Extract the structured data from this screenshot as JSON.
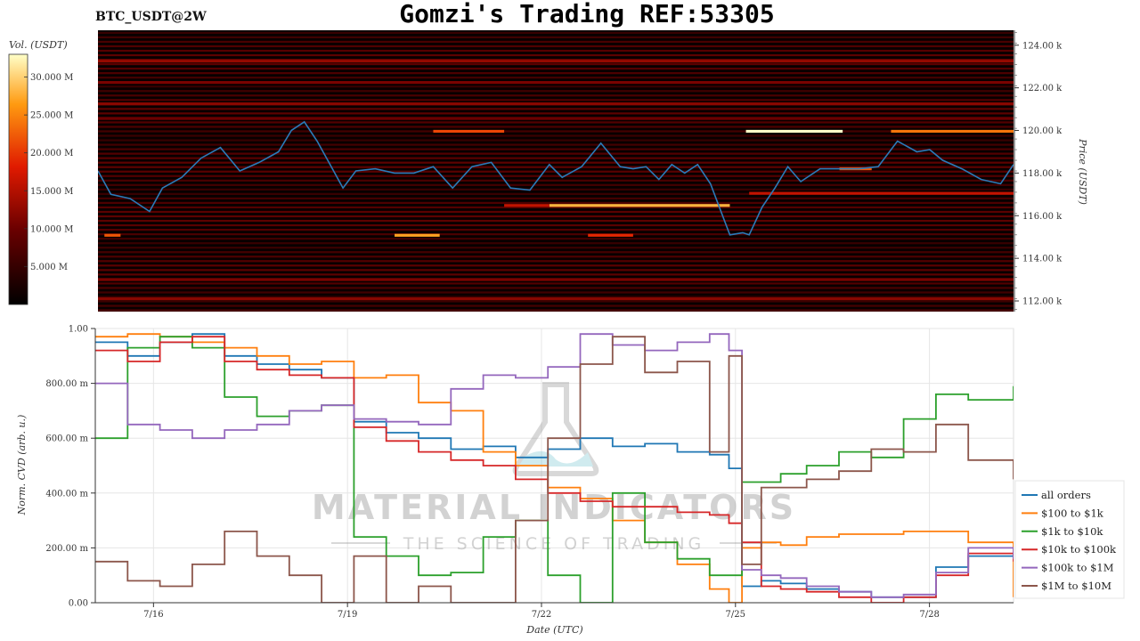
{
  "header": {
    "title": "Gomzi's Trading REF:53305",
    "pair": "BTC_USDT@2W"
  },
  "colorbar": {
    "label": "Vol. (USDT)",
    "ticks": [
      "5.000 M",
      "10.000 M",
      "15.000 M",
      "20.000 M",
      "25.000 M",
      "30.000 M"
    ],
    "max": 33000000
  },
  "watermark": {
    "brand": "MATERIAL INDICATORS",
    "tagline": "THE SCIENCE OF TRADING"
  },
  "chart_data": [
    {
      "type": "heatmap",
      "ylabel": "Price (USDT)",
      "ylim": [
        111500,
        124700
      ],
      "yticks": [
        "112.00 k",
        "114.00 k",
        "116.00 k",
        "118.00 k",
        "120.00 k",
        "122.00 k",
        "124.00 k"
      ],
      "xlim": [
        0,
        14.2
      ],
      "price_series": {
        "name": "price",
        "color": "#2b7bb9",
        "x": [
          0,
          0.2,
          0.5,
          0.8,
          1.0,
          1.3,
          1.6,
          1.9,
          2.2,
          2.5,
          2.8,
          3.0,
          3.2,
          3.4,
          3.6,
          3.8,
          4.0,
          4.3,
          4.6,
          4.9,
          5.2,
          5.5,
          5.8,
          6.1,
          6.4,
          6.7,
          7.0,
          7.2,
          7.5,
          7.8,
          8.1,
          8.3,
          8.5,
          8.7,
          8.9,
          9.1,
          9.3,
          9.5,
          9.8,
          10.0,
          10.1,
          10.3,
          10.5,
          10.7,
          10.9,
          11.2,
          11.5,
          11.8,
          12.1,
          12.4,
          12.7,
          12.9,
          13.1,
          13.4,
          13.7,
          14.0,
          14.2
        ],
        "y": [
          118100,
          117000,
          116800,
          116200,
          117300,
          117800,
          118700,
          119200,
          118100,
          118500,
          119000,
          120000,
          120400,
          119500,
          118400,
          117300,
          118100,
          118200,
          118000,
          118000,
          118300,
          117300,
          118300,
          118500,
          117300,
          117200,
          118400,
          117800,
          118300,
          119400,
          118300,
          118200,
          118300,
          117700,
          118400,
          118000,
          118400,
          117500,
          115100,
          115200,
          115100,
          116400,
          117300,
          118300,
          117600,
          118200,
          118200,
          118200,
          118300,
          119500,
          119000,
          119100,
          118600,
          118200,
          117700,
          117500,
          118400
        ]
      },
      "levels": [
        {
          "price": 119960,
          "x0": 10.05,
          "x1": 11.55,
          "volume": 33000000
        },
        {
          "price": 119960,
          "x0": 12.3,
          "x1": 14.2,
          "volume": 24000000
        },
        {
          "price": 119960,
          "x0": 5.2,
          "x1": 6.3,
          "volume": 21000000
        },
        {
          "price": 116480,
          "x0": 7.0,
          "x1": 9.8,
          "volume": 28000000
        },
        {
          "price": 116480,
          "x0": 6.3,
          "x1": 7.0,
          "volume": 16000000
        },
        {
          "price": 115080,
          "x0": 0.1,
          "x1": 0.35,
          "volume": 22000000
        },
        {
          "price": 115080,
          "x0": 4.6,
          "x1": 5.3,
          "volume": 27000000
        },
        {
          "price": 115080,
          "x0": 7.6,
          "x1": 8.3,
          "volume": 19000000
        },
        {
          "price": 117050,
          "x0": 10.1,
          "x1": 14.2,
          "volume": 16000000
        },
        {
          "price": 118200,
          "x0": 11.5,
          "x1": 12.0,
          "volume": 22000000
        },
        {
          "price": 123250,
          "x0": 0,
          "x1": 14.2,
          "volume": 13000000
        },
        {
          "price": 122250,
          "x0": 0,
          "x1": 14.2,
          "volume": 11000000
        },
        {
          "price": 121250,
          "x0": 0,
          "x1": 14.2,
          "volume": 12000000
        },
        {
          "price": 120560,
          "x0": 0,
          "x1": 14.2,
          "volume": 10000000
        },
        {
          "price": 113000,
          "x0": 0,
          "x1": 14.2,
          "volume": 11000000
        },
        {
          "price": 112100,
          "x0": 0,
          "x1": 14.2,
          "volume": 12000000
        }
      ]
    },
    {
      "type": "line",
      "xlabel": "Date (UTC)",
      "ylabel": "Norm. CVD (arb. u.)",
      "xlim": [
        0,
        14.2
      ],
      "ylim": [
        0,
        1
      ],
      "xticks": [
        {
          "value": 0.9,
          "label": "7/16"
        },
        {
          "value": 3.9,
          "label": "7/19"
        },
        {
          "value": 6.9,
          "label": "7/22"
        },
        {
          "value": 9.9,
          "label": "7/25"
        },
        {
          "value": 12.9,
          "label": "7/28"
        }
      ],
      "yticks": [
        {
          "value": 0,
          "label": "0.00"
        },
        {
          "value": 0.2,
          "label": "200.00 m"
        },
        {
          "value": 0.4,
          "label": "400.00 m"
        },
        {
          "value": 0.6,
          "label": "600.00 m"
        },
        {
          "value": 0.8,
          "label": "800.00 m"
        },
        {
          "value": 1.0,
          "label": "1.00"
        }
      ],
      "x": [
        0,
        0.5,
        1.0,
        1.5,
        2.0,
        2.5,
        3.0,
        3.5,
        4.0,
        4.5,
        5.0,
        5.5,
        6.0,
        6.5,
        7.0,
        7.5,
        8.0,
        8.5,
        9.0,
        9.5,
        9.8,
        10.0,
        10.3,
        10.6,
        11.0,
        11.5,
        12.0,
        12.5,
        13.0,
        13.5,
        14.2
      ],
      "series": [
        {
          "name": "all orders",
          "color": "#1f77b4",
          "values": [
            0.95,
            0.9,
            0.95,
            0.98,
            0.9,
            0.87,
            0.85,
            0.82,
            0.66,
            0.62,
            0.6,
            0.56,
            0.57,
            0.53,
            0.56,
            0.6,
            0.57,
            0.58,
            0.55,
            0.54,
            0.49,
            0.06,
            0.08,
            0.07,
            0.05,
            0.04,
            0.02,
            0.02,
            0.13,
            0.17,
            0.18
          ]
        },
        {
          "name": "$100 to $1k",
          "color": "#ff7f0e",
          "values": [
            0.97,
            0.98,
            0.97,
            0.95,
            0.93,
            0.9,
            0.87,
            0.88,
            0.82,
            0.83,
            0.73,
            0.7,
            0.55,
            0.5,
            0.42,
            0.38,
            0.3,
            0.22,
            0.14,
            0.05,
            0.0,
            0.2,
            0.22,
            0.21,
            0.24,
            0.25,
            0.25,
            0.26,
            0.26,
            0.22,
            0.02
          ]
        },
        {
          "name": "$1k to $10k",
          "color": "#2ca02c",
          "values": [
            0.6,
            0.93,
            0.97,
            0.93,
            0.75,
            0.68,
            0.7,
            0.72,
            0.24,
            0.17,
            0.1,
            0.11,
            0.24,
            0.3,
            0.1,
            0.0,
            0.4,
            0.22,
            0.16,
            0.1,
            0.1,
            0.44,
            0.44,
            0.47,
            0.5,
            0.55,
            0.53,
            0.67,
            0.76,
            0.74,
            0.79
          ]
        },
        {
          "name": "$10k to $100k",
          "color": "#d62728",
          "values": [
            0.92,
            0.88,
            0.95,
            0.97,
            0.88,
            0.85,
            0.83,
            0.82,
            0.64,
            0.59,
            0.55,
            0.52,
            0.5,
            0.45,
            0.4,
            0.37,
            0.35,
            0.35,
            0.33,
            0.32,
            0.29,
            0.22,
            0.06,
            0.05,
            0.04,
            0.02,
            0.0,
            0.02,
            0.1,
            0.18,
            0.15
          ]
        },
        {
          "name": "$100k to $1M",
          "color": "#9467bd",
          "values": [
            0.8,
            0.65,
            0.63,
            0.6,
            0.63,
            0.65,
            0.7,
            0.72,
            0.67,
            0.66,
            0.65,
            0.78,
            0.83,
            0.82,
            0.86,
            0.98,
            0.94,
            0.92,
            0.95,
            0.98,
            0.92,
            0.12,
            0.1,
            0.09,
            0.06,
            0.04,
            0.02,
            0.03,
            0.11,
            0.2,
            0.16
          ]
        },
        {
          "name": "$1M to $10M",
          "color": "#8c564b",
          "values": [
            0.15,
            0.08,
            0.06,
            0.14,
            0.26,
            0.17,
            0.1,
            0.0,
            0.17,
            0.0,
            0.06,
            0.0,
            0.0,
            0.3,
            0.6,
            0.87,
            0.97,
            0.84,
            0.88,
            0.55,
            0.9,
            0.14,
            0.42,
            0.42,
            0.45,
            0.48,
            0.56,
            0.55,
            0.65,
            0.52,
            0.45
          ]
        }
      ],
      "legend_position": "right"
    }
  ]
}
